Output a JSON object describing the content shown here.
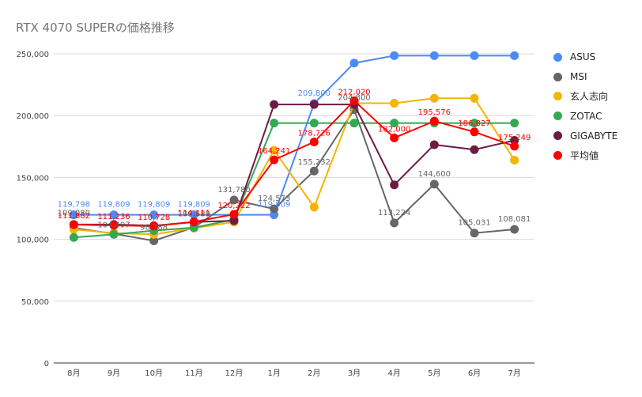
{
  "chart_data": {
    "type": "line",
    "title": "RTX 4070 SUPERの価格推移",
    "xlabel": "",
    "ylabel": "",
    "categories": [
      "8月",
      "9月",
      "10月",
      "11月",
      "12月",
      "1月",
      "2月",
      "3月",
      "4月",
      "5月",
      "6月",
      "7月"
    ],
    "ylim": [
      0,
      250000
    ],
    "yticks": [
      0,
      50000,
      100000,
      150000,
      200000,
      250000
    ],
    "ytick_labels": [
      "0",
      "50,000",
      "100,000",
      "150,000",
      "200,000",
      "250,000"
    ],
    "grid": true,
    "legend_position": "right",
    "series": [
      {
        "name": "ASUS",
        "color": "#4c8bf5",
        "values": [
          119798,
          119809,
          119809,
          119809,
          119809,
          119809,
          209800,
          242500,
          248500,
          248500,
          248500,
          248500
        ],
        "labels": [
          "119,798",
          "119,809",
          "119,809",
          "119,809",
          "",
          "119,809",
          "209,800",
          "",
          "",
          "",
          "",
          ""
        ]
      },
      {
        "name": "MSI",
        "color": "#666666",
        "values": [
          109080,
          104497,
          98788,
          109689,
          131780,
          124573,
          155232,
          204800,
          113224,
          144600,
          105031,
          108081
        ],
        "labels": [
          "109,080",
          "104,497",
          "98,788",
          "109,689",
          "131,780",
          "124,573",
          "155,232",
          "204,800",
          "113,224",
          "144,600",
          "105,031",
          "108,081"
        ]
      },
      {
        "name": "玄人志向",
        "color": "#f4b400",
        "values": [
          108000,
          105000,
          104000,
          109000,
          114000,
          172000,
          126000,
          210000,
          210000,
          214000,
          214000,
          164000
        ],
        "labels": [
          "",
          "",
          "",
          "",
          "",
          "",
          "",
          "",
          "",
          "",
          "",
          ""
        ]
      },
      {
        "name": "ZOTAC",
        "color": "#34a853",
        "values": [
          101500,
          104000,
          107000,
          109500,
          116000,
          194000,
          194000,
          194000,
          194000,
          194000,
          194000,
          194000
        ],
        "labels": [
          "",
          "",
          "",
          "",
          "",
          "",
          "",
          "",
          "",
          "",
          "",
          ""
        ]
      },
      {
        "name": "GIGABYTE",
        "color": "#6d1b45",
        "values": [
          112000,
          112000,
          111000,
          114000,
          115000,
          209000,
          209000,
          209000,
          144000,
          176500,
          172500,
          180000
        ],
        "labels": [
          "",
          "",
          "",
          "",
          "",
          "",
          "",
          "",
          "",
          "",
          "",
          ""
        ]
      },
      {
        "name": "平均値",
        "color": "#ff0000",
        "values": [
          111882,
          111236,
          110728,
          114111,
          120222,
          164241,
          178726,
          212020,
          182000,
          195576,
          186827,
          175249
        ],
        "labels": [
          "111,882",
          "111,236",
          "110,728",
          "114,111",
          "120,222",
          "164,241",
          "178,726",
          "212,020",
          "182,000",
          "195,576",
          "186,827",
          "175,249"
        ]
      }
    ]
  }
}
